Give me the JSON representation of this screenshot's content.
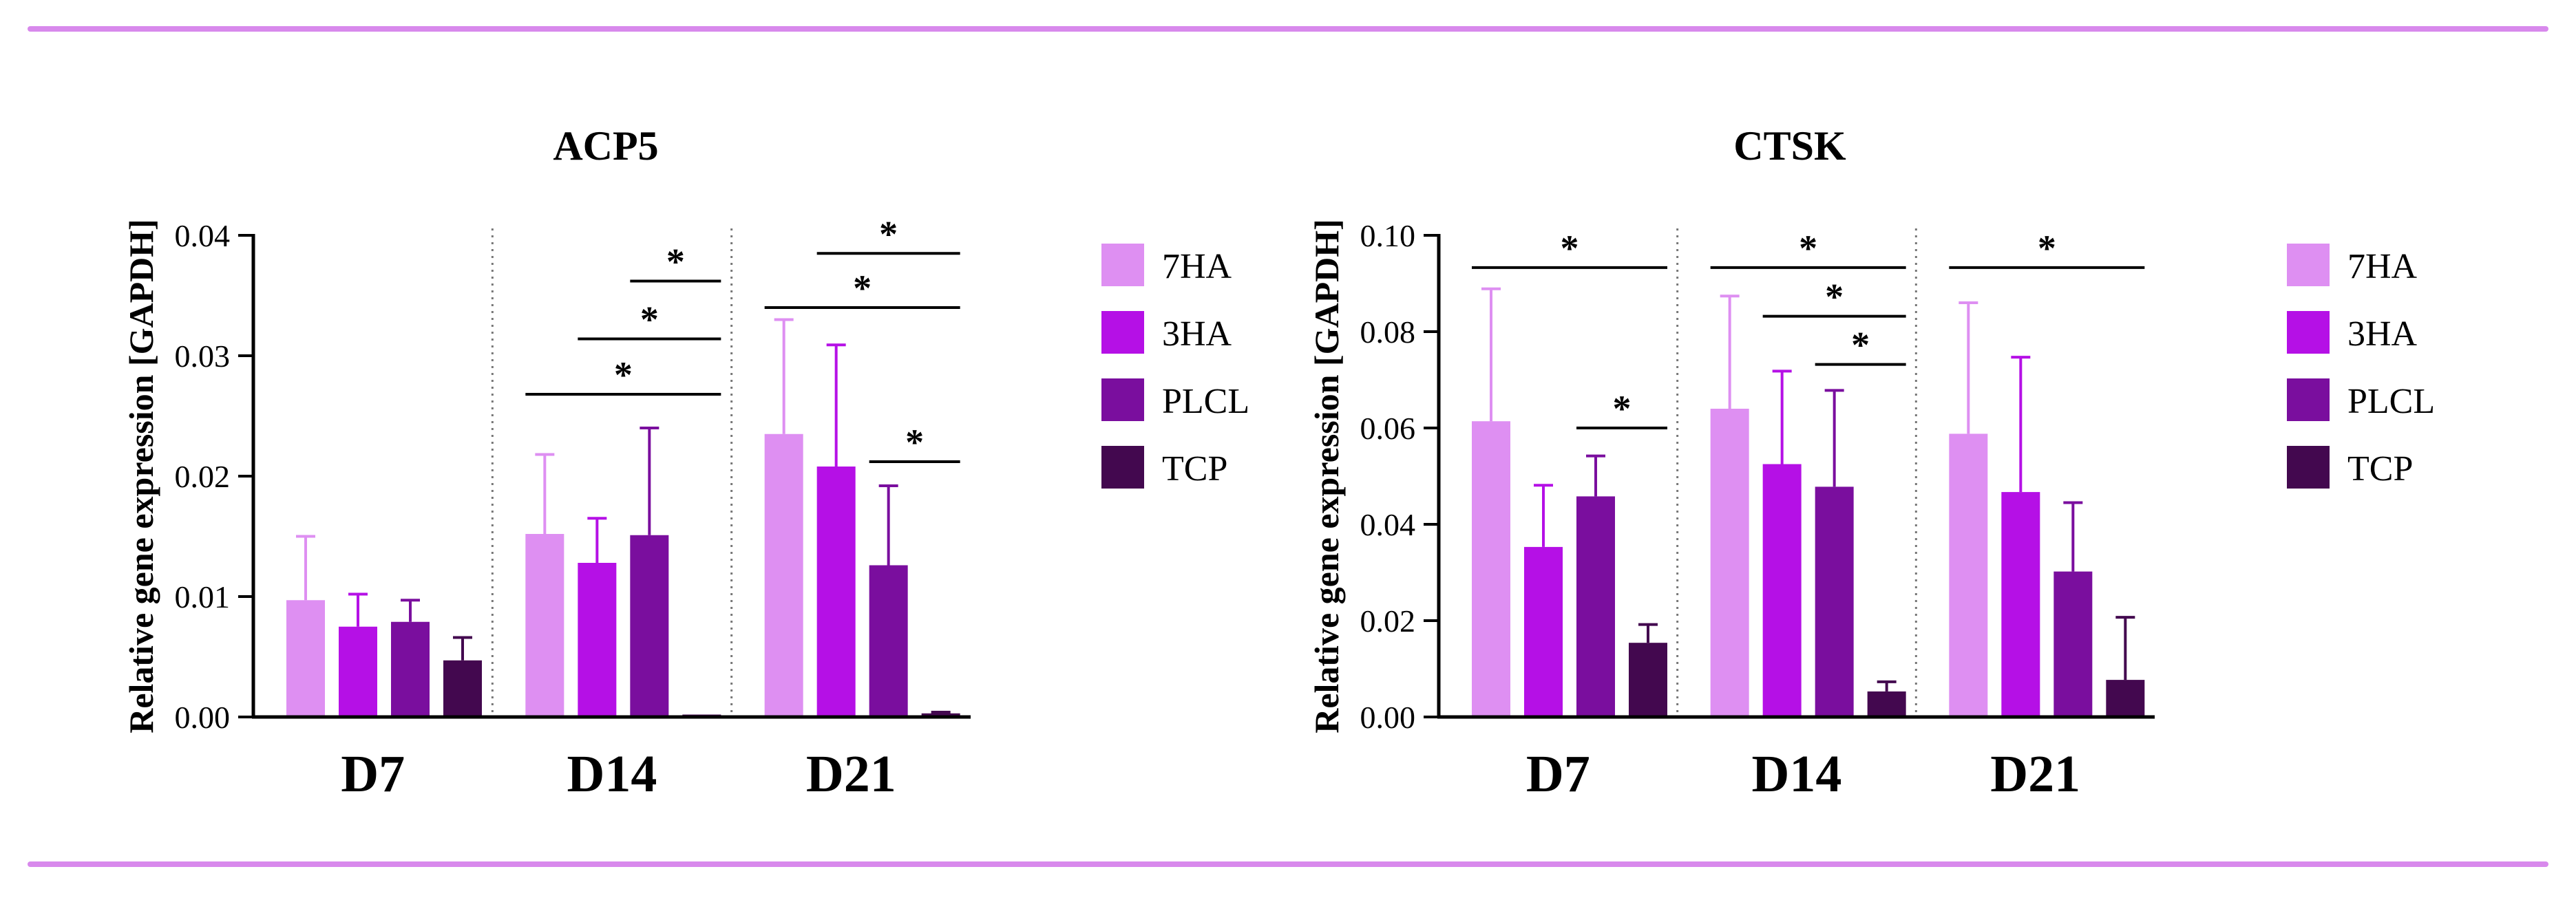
{
  "colors": {
    "rule": "#d889ec",
    "axis": "#000000",
    "separator": "#777777",
    "7HA": "#de8ff2",
    "3HA": "#b510e6",
    "PLCL": "#7a0e9e",
    "TCP": "#43084f"
  },
  "legend": {
    "items": [
      {
        "key": "7HA",
        "label": "7HA"
      },
      {
        "key": "3HA",
        "label": "3HA"
      },
      {
        "key": "PLCL",
        "label": "PLCL"
      },
      {
        "key": "TCP",
        "label": "TCP"
      }
    ]
  },
  "chart_data": [
    {
      "id": "acp5",
      "type": "bar",
      "title": "ACP5",
      "xlabel": "",
      "ylabel": "Relative gene expression [GAPDH]",
      "ylim": [
        0,
        0.04
      ],
      "yticks": [
        0.0,
        0.01,
        0.02,
        0.03,
        0.04
      ],
      "ytick_labels": [
        "0.00",
        "0.01",
        "0.02",
        "0.03",
        "0.04"
      ],
      "categories": [
        "D7",
        "D14",
        "D21"
      ],
      "series": [
        {
          "name": "7HA",
          "values": [
            0.0097,
            0.0152,
            0.0235
          ],
          "errors": [
            0.0053,
            0.0066,
            0.0095
          ]
        },
        {
          "name": "3HA",
          "values": [
            0.0075,
            0.0128,
            0.0208
          ],
          "errors": [
            0.0027,
            0.0037,
            0.0101
          ]
        },
        {
          "name": "PLCL",
          "values": [
            0.0079,
            0.0151,
            0.0126
          ],
          "errors": [
            0.0018,
            0.0089,
            0.0066
          ]
        },
        {
          "name": "TCP",
          "values": [
            0.0047,
            0.0002,
            0.0003
          ],
          "errors": [
            0.0019,
            0.0,
            0.0001
          ]
        }
      ],
      "significance": [
        {
          "category": 1,
          "from": 2,
          "to": 3,
          "level": 0.0362,
          "label": "*"
        },
        {
          "category": 1,
          "from": 1,
          "to": 3,
          "level": 0.0314,
          "label": "*"
        },
        {
          "category": 1,
          "from": 0,
          "to": 3,
          "level": 0.0268,
          "label": "*"
        },
        {
          "category": 2,
          "from": 1,
          "to": 3,
          "level": 0.0385,
          "label": "*"
        },
        {
          "category": 2,
          "from": 0,
          "to": 3,
          "level": 0.034,
          "label": "*"
        },
        {
          "category": 2,
          "from": 2,
          "to": 3,
          "level": 0.0212,
          "label": "*"
        }
      ]
    },
    {
      "id": "ctsk",
      "type": "bar",
      "title": "CTSK",
      "xlabel": "",
      "ylabel": "Relative gene expression [GAPDH]",
      "ylim": [
        0,
        0.1
      ],
      "yticks": [
        0.0,
        0.02,
        0.04,
        0.06,
        0.08,
        0.1
      ],
      "ytick_labels": [
        "0.00",
        "0.02",
        "0.04",
        "0.06",
        "0.08",
        "0.10"
      ],
      "categories": [
        "D7",
        "D14",
        "D21"
      ],
      "series": [
        {
          "name": "7HA",
          "values": [
            0.0614,
            0.064,
            0.0588
          ],
          "errors": [
            0.0275,
            0.0234,
            0.0272
          ]
        },
        {
          "name": "3HA",
          "values": [
            0.0353,
            0.0525,
            0.0467
          ],
          "errors": [
            0.0128,
            0.0193,
            0.028
          ]
        },
        {
          "name": "PLCL",
          "values": [
            0.0458,
            0.0478,
            0.0302
          ],
          "errors": [
            0.0084,
            0.02,
            0.0143
          ]
        },
        {
          "name": "TCP",
          "values": [
            0.0154,
            0.0053,
            0.0077
          ],
          "errors": [
            0.0038,
            0.002,
            0.013
          ]
        }
      ],
      "significance": [
        {
          "category": 0,
          "from": 0,
          "to": 3,
          "level": 0.0933,
          "label": "*"
        },
        {
          "category": 0,
          "from": 2,
          "to": 3,
          "level": 0.06,
          "label": "*"
        },
        {
          "category": 1,
          "from": 0,
          "to": 3,
          "level": 0.0933,
          "label": "*"
        },
        {
          "category": 1,
          "from": 1,
          "to": 3,
          "level": 0.0832,
          "label": "*"
        },
        {
          "category": 1,
          "from": 2,
          "to": 3,
          "level": 0.0732,
          "label": "*"
        },
        {
          "category": 2,
          "from": 0,
          "to": 3,
          "level": 0.0933,
          "label": "*"
        }
      ]
    }
  ]
}
